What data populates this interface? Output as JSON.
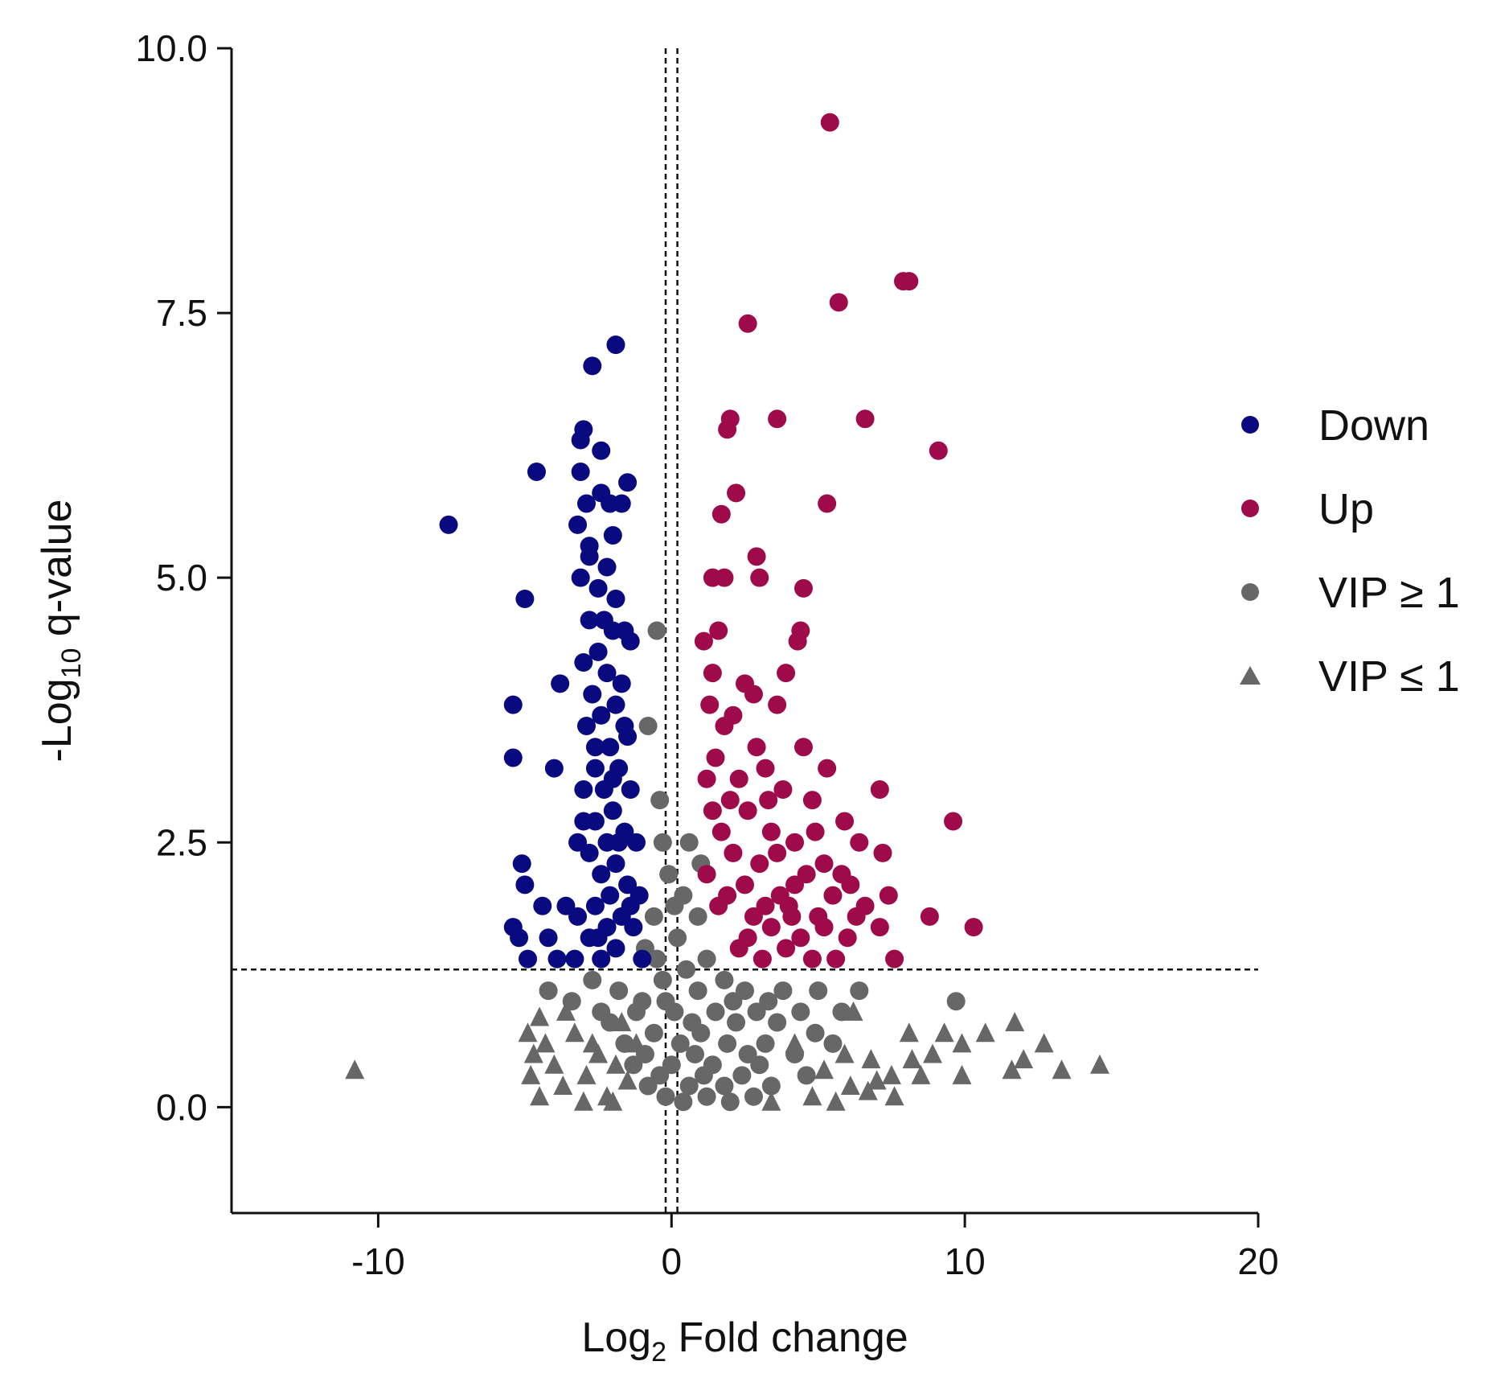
{
  "chart_data": {
    "type": "scatter",
    "title": "",
    "xlabel": {
      "prefix": "Log",
      "sub": "2",
      "suffix": " Fold change"
    },
    "ylabel": {
      "prefix": "-Log",
      "sub": "10",
      "suffix": " q-value"
    },
    "xlim": [
      -15,
      20
    ],
    "ylim": [
      -1,
      10
    ],
    "xticks": [
      -10,
      0,
      10,
      20
    ],
    "xtick_labels": [
      "-10",
      "0",
      "10",
      "20"
    ],
    "yticks": [
      0,
      2.5,
      5,
      7.5,
      10
    ],
    "ytick_labels": [
      "0.0",
      "2.5",
      "5.0",
      "7.5",
      "10.0"
    ],
    "grid": false,
    "legend_position": "right",
    "reference_lines": {
      "vertical_x": [
        -0.2,
        0.2
      ],
      "horizontal_y": 1.3
    },
    "colors": {
      "down": "#0a0a80",
      "up": "#9e0a4a",
      "nonsig": "#676767"
    },
    "series": [
      {
        "name": "Down",
        "marker": "circle",
        "color": "#0a0a80",
        "points": [
          [
            -7.6,
            5.5
          ],
          [
            -5.0,
            4.8
          ],
          [
            -4.6,
            6.0
          ],
          [
            -5.4,
            3.8
          ],
          [
            -5.4,
            3.3
          ],
          [
            -3.8,
            4.0
          ],
          [
            -4.0,
            3.2
          ],
          [
            -5.1,
            2.3
          ],
          [
            -5.0,
            2.1
          ],
          [
            -4.4,
            1.9
          ],
          [
            -5.4,
            1.7
          ],
          [
            -5.2,
            1.6
          ],
          [
            -4.9,
            1.4
          ],
          [
            -4.2,
            1.6
          ],
          [
            -3.9,
            1.4
          ],
          [
            -3.3,
            1.4
          ],
          [
            -3.6,
            1.9
          ],
          [
            -3.2,
            2.5
          ],
          [
            -3.0,
            2.7
          ],
          [
            -1.9,
            7.2
          ],
          [
            -2.7,
            7.0
          ],
          [
            -3.0,
            6.4
          ],
          [
            -3.1,
            6.3
          ],
          [
            -2.4,
            6.2
          ],
          [
            -3.1,
            6.0
          ],
          [
            -2.4,
            5.8
          ],
          [
            -1.5,
            5.9
          ],
          [
            -2.9,
            5.7
          ],
          [
            -2.1,
            5.7
          ],
          [
            -1.7,
            5.7
          ],
          [
            -3.2,
            5.5
          ],
          [
            -2.8,
            5.3
          ],
          [
            -2.2,
            5.1
          ],
          [
            -3.1,
            5.0
          ],
          [
            -2.5,
            4.9
          ],
          [
            -1.9,
            4.8
          ],
          [
            -2.8,
            4.6
          ],
          [
            -2.0,
            4.5
          ],
          [
            -1.6,
            4.5
          ],
          [
            -2.5,
            4.3
          ],
          [
            -3.0,
            4.2
          ],
          [
            -1.4,
            4.4
          ],
          [
            -2.2,
            4.1
          ],
          [
            -2.7,
            3.9
          ],
          [
            -1.9,
            3.8
          ],
          [
            -2.4,
            3.7
          ],
          [
            -1.6,
            3.6
          ],
          [
            -2.9,
            3.6
          ],
          [
            -2.1,
            3.4
          ],
          [
            -1.5,
            3.5
          ],
          [
            -2.6,
            3.2
          ],
          [
            -1.8,
            3.2
          ],
          [
            -3.0,
            3.0
          ],
          [
            -2.3,
            3.0
          ],
          [
            -1.4,
            3.0
          ],
          [
            -2.0,
            2.8
          ],
          [
            -2.6,
            2.7
          ],
          [
            -1.6,
            2.6
          ],
          [
            -2.2,
            2.5
          ],
          [
            -1.2,
            2.5
          ],
          [
            -2.8,
            2.4
          ],
          [
            -1.9,
            2.3
          ],
          [
            -2.4,
            2.2
          ],
          [
            -1.5,
            2.1
          ],
          [
            -2.1,
            2.0
          ],
          [
            -1.1,
            2.0
          ],
          [
            -2.6,
            1.9
          ],
          [
            -1.7,
            1.8
          ],
          [
            -2.2,
            1.7
          ],
          [
            -1.3,
            1.7
          ],
          [
            -2.8,
            1.6
          ],
          [
            -1.9,
            1.5
          ],
          [
            -2.4,
            1.4
          ],
          [
            -1.0,
            1.4
          ],
          [
            -3.2,
            1.8
          ],
          [
            -2.5,
            1.6
          ],
          [
            -1.4,
            1.9
          ],
          [
            -1.8,
            2.5
          ],
          [
            -2.0,
            3.1
          ],
          [
            -2.6,
            3.4
          ],
          [
            -1.7,
            4.0
          ],
          [
            -2.3,
            4.6
          ],
          [
            -2.8,
            5.2
          ],
          [
            -2.0,
            5.4
          ]
        ]
      },
      {
        "name": "Up",
        "marker": "circle",
        "color": "#9e0a4a",
        "points": [
          [
            5.4,
            9.3
          ],
          [
            7.9,
            7.8
          ],
          [
            8.1,
            7.8
          ],
          [
            5.7,
            7.6
          ],
          [
            2.6,
            7.4
          ],
          [
            2.0,
            6.5
          ],
          [
            3.6,
            6.5
          ],
          [
            6.6,
            6.5
          ],
          [
            9.1,
            6.2
          ],
          [
            1.9,
            6.4
          ],
          [
            2.2,
            5.8
          ],
          [
            5.3,
            5.7
          ],
          [
            1.7,
            5.6
          ],
          [
            2.9,
            5.2
          ],
          [
            1.4,
            5.0
          ],
          [
            1.8,
            5.0
          ],
          [
            3.0,
            5.0
          ],
          [
            4.5,
            4.9
          ],
          [
            1.6,
            4.5
          ],
          [
            1.1,
            4.4
          ],
          [
            4.3,
            4.4
          ],
          [
            4.4,
            4.5
          ],
          [
            2.5,
            4.0
          ],
          [
            3.9,
            4.1
          ],
          [
            1.4,
            4.1
          ],
          [
            2.8,
            3.9
          ],
          [
            1.3,
            3.8
          ],
          [
            2.1,
            3.7
          ],
          [
            3.6,
            3.8
          ],
          [
            1.8,
            3.6
          ],
          [
            2.9,
            3.4
          ],
          [
            1.5,
            3.3
          ],
          [
            4.5,
            3.4
          ],
          [
            3.2,
            3.2
          ],
          [
            1.2,
            3.1
          ],
          [
            5.3,
            3.2
          ],
          [
            2.3,
            3.1
          ],
          [
            3.8,
            3.0
          ],
          [
            7.1,
            3.0
          ],
          [
            4.8,
            2.9
          ],
          [
            1.4,
            2.8
          ],
          [
            2.6,
            2.8
          ],
          [
            5.9,
            2.7
          ],
          [
            9.6,
            2.7
          ],
          [
            3.4,
            2.6
          ],
          [
            1.7,
            2.6
          ],
          [
            6.4,
            2.5
          ],
          [
            4.2,
            2.5
          ],
          [
            2.1,
            2.4
          ],
          [
            5.2,
            2.3
          ],
          [
            7.2,
            2.4
          ],
          [
            3.0,
            2.3
          ],
          [
            1.2,
            2.2
          ],
          [
            4.6,
            2.2
          ],
          [
            6.1,
            2.1
          ],
          [
            2.5,
            2.1
          ],
          [
            3.7,
            2.0
          ],
          [
            5.5,
            2.0
          ],
          [
            7.4,
            2.0
          ],
          [
            1.6,
            1.9
          ],
          [
            4.0,
            1.9
          ],
          [
            6.6,
            1.9
          ],
          [
            2.8,
            1.8
          ],
          [
            5.0,
            1.8
          ],
          [
            3.4,
            1.7
          ],
          [
            8.8,
            1.8
          ],
          [
            10.3,
            1.7
          ],
          [
            7.1,
            1.7
          ],
          [
            4.4,
            1.6
          ],
          [
            6.0,
            1.6
          ],
          [
            2.3,
            1.5
          ],
          [
            3.9,
            1.5
          ],
          [
            5.6,
            1.4
          ],
          [
            7.6,
            1.4
          ],
          [
            4.8,
            1.4
          ],
          [
            3.1,
            1.4
          ],
          [
            2.6,
            1.6
          ],
          [
            4.2,
            2.1
          ],
          [
            3.6,
            2.4
          ],
          [
            5.8,
            2.2
          ],
          [
            4.9,
            2.6
          ],
          [
            3.3,
            2.9
          ],
          [
            2.0,
            2.9
          ],
          [
            1.9,
            2.0
          ],
          [
            3.2,
            1.9
          ],
          [
            4.1,
            1.8
          ],
          [
            5.2,
            1.7
          ],
          [
            6.3,
            1.8
          ]
        ]
      },
      {
        "name": "VIP ≥ 1",
        "marker": "circle",
        "color": "#676767",
        "points": [
          [
            -0.5,
            4.5
          ],
          [
            -0.8,
            3.6
          ],
          [
            -0.4,
            2.9
          ],
          [
            -0.3,
            2.5
          ],
          [
            0.6,
            2.5
          ],
          [
            -0.1,
            2.2
          ],
          [
            0.4,
            2.0
          ],
          [
            -0.6,
            1.8
          ],
          [
            0.9,
            1.8
          ],
          [
            0.2,
            1.6
          ],
          [
            -0.9,
            1.5
          ],
          [
            1.2,
            1.4
          ],
          [
            0.5,
            1.3
          ],
          [
            -0.3,
            1.2
          ],
          [
            1.8,
            1.2
          ],
          [
            -1.8,
            1.1
          ],
          [
            -2.7,
            1.2
          ],
          [
            -3.4,
            1.0
          ],
          [
            -4.2,
            1.1
          ],
          [
            2.5,
            1.1
          ],
          [
            3.8,
            1.1
          ],
          [
            5.0,
            1.1
          ],
          [
            6.4,
            1.1
          ],
          [
            9.7,
            1.0
          ],
          [
            -1.2,
            0.9
          ],
          [
            0.1,
            0.9
          ],
          [
            1.5,
            0.9
          ],
          [
            2.9,
            0.9
          ],
          [
            4.4,
            0.9
          ],
          [
            -2.1,
            0.8
          ],
          [
            0.7,
            0.8
          ],
          [
            2.2,
            0.8
          ],
          [
            3.6,
            0.8
          ],
          [
            -0.6,
            0.7
          ],
          [
            1.0,
            0.7
          ],
          [
            4.9,
            0.7
          ],
          [
            -1.6,
            0.6
          ],
          [
            0.3,
            0.6
          ],
          [
            1.9,
            0.6
          ],
          [
            3.2,
            0.6
          ],
          [
            5.5,
            0.6
          ],
          [
            -0.9,
            0.5
          ],
          [
            0.8,
            0.5
          ],
          [
            2.6,
            0.5
          ],
          [
            4.2,
            0.5
          ],
          [
            -1.3,
            0.4
          ],
          [
            0.0,
            0.4
          ],
          [
            1.4,
            0.4
          ],
          [
            3.0,
            0.4
          ],
          [
            -0.4,
            0.3
          ],
          [
            1.1,
            0.3
          ],
          [
            2.4,
            0.3
          ],
          [
            4.6,
            0.3
          ],
          [
            -0.8,
            0.2
          ],
          [
            0.6,
            0.2
          ],
          [
            1.8,
            0.2
          ],
          [
            3.4,
            0.2
          ],
          [
            -0.2,
            0.1
          ],
          [
            1.2,
            0.1
          ],
          [
            2.8,
            0.1
          ],
          [
            0.4,
            0.05
          ],
          [
            2.0,
            0.05
          ],
          [
            -1.0,
            1.0
          ],
          [
            0.9,
            1.1
          ],
          [
            -0.5,
            1.4
          ],
          [
            0.1,
            1.9
          ],
          [
            1.0,
            2.3
          ],
          [
            -0.2,
            1.0
          ],
          [
            2.1,
            1.0
          ],
          [
            3.3,
            1.0
          ],
          [
            -2.4,
            0.9
          ],
          [
            5.8,
            0.9
          ]
        ]
      },
      {
        "name": "VIP ≤ 1",
        "marker": "triangle",
        "color": "#676767",
        "points": [
          [
            -10.8,
            0.35
          ],
          [
            14.6,
            0.4
          ],
          [
            13.3,
            0.35
          ],
          [
            12.7,
            0.6
          ],
          [
            11.7,
            0.8
          ],
          [
            11.6,
            0.35
          ],
          [
            10.7,
            0.7
          ],
          [
            9.9,
            0.6
          ],
          [
            9.9,
            0.3
          ],
          [
            9.3,
            0.7
          ],
          [
            8.9,
            0.5
          ],
          [
            8.1,
            0.7
          ],
          [
            8.2,
            0.45
          ],
          [
            7.5,
            0.3
          ],
          [
            8.5,
            0.3
          ],
          [
            6.8,
            0.45
          ],
          [
            6.1,
            0.2
          ],
          [
            7.6,
            0.1
          ],
          [
            5.9,
            0.5
          ],
          [
            6.2,
            0.9
          ],
          [
            -4.9,
            0.7
          ],
          [
            -4.7,
            0.5
          ],
          [
            -4.8,
            0.3
          ],
          [
            -4.3,
            0.6
          ],
          [
            -4.0,
            0.4
          ],
          [
            -3.7,
            0.2
          ],
          [
            -3.3,
            0.7
          ],
          [
            -2.9,
            0.3
          ],
          [
            -2.5,
            0.5
          ],
          [
            -2.2,
            0.1
          ],
          [
            -1.9,
            0.4
          ],
          [
            -1.5,
            0.25
          ],
          [
            -4.5,
            0.1
          ],
          [
            -3.0,
            0.05
          ],
          [
            -2.0,
            0.05
          ],
          [
            4.8,
            0.1
          ],
          [
            5.2,
            0.35
          ],
          [
            6.7,
            0.15
          ],
          [
            4.2,
            0.6
          ],
          [
            3.4,
            0.05
          ],
          [
            -1.2,
            0.6
          ],
          [
            -3.6,
            0.9
          ],
          [
            -4.5,
            0.85
          ],
          [
            5.6,
            0.05
          ],
          [
            7.0,
            0.25
          ],
          [
            12.0,
            0.45
          ],
          [
            -2.7,
            0.6
          ],
          [
            -1.7,
            0.8
          ]
        ]
      }
    ]
  },
  "legend": [
    {
      "label": "Down",
      "marker": "circle",
      "color": "#0a0a80"
    },
    {
      "label": "Up",
      "marker": "circle",
      "color": "#9e0a4a"
    },
    {
      "label": "VIP ≥ 1",
      "marker": "circle",
      "color": "#676767"
    },
    {
      "label": "VIP ≤ 1",
      "marker": "triangle",
      "color": "#676767"
    }
  ]
}
